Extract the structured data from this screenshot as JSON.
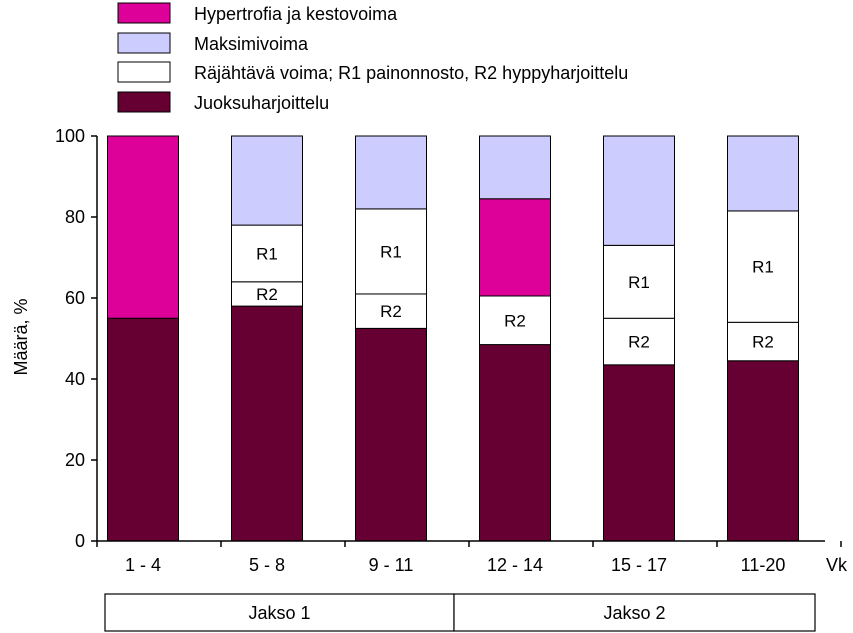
{
  "chart_data": {
    "type": "bar",
    "stacked": true,
    "ylabel": "Määrä, %",
    "ylim": [
      0,
      100
    ],
    "yticks": [
      0,
      20,
      40,
      60,
      80,
      100
    ],
    "x_unit_label": "Vk",
    "categories": [
      "1 - 4",
      "5 - 8",
      "9 - 11",
      "12  - 14",
      "15  - 17",
      "11-20"
    ],
    "groups": [
      {
        "label": "Jakso 1",
        "categories": 3
      },
      {
        "label": "Jakso 2",
        "categories": 3
      }
    ],
    "legend_position": "top",
    "legend_note": "Räjähtävä voima;     R1 painonnosto,     R2 hyppyharjoittelu",
    "series": [
      {
        "name": "Juoksuharjoittelu",
        "color": "#660033",
        "values": [
          55,
          58,
          52.5,
          48.5,
          43.5,
          44.5
        ]
      },
      {
        "name": "R2",
        "color": "#ffffff",
        "segment_label": "R2",
        "values": [
          0,
          6,
          8.5,
          12,
          11.5,
          9.5
        ]
      },
      {
        "name": "R1",
        "color": "#ffffff",
        "segment_label": "R1",
        "values": [
          0,
          14,
          21,
          0,
          18,
          27.5
        ]
      },
      {
        "name": "Hypertrofia ja kestovoima",
        "color": "#dd0099",
        "values": [
          45,
          0,
          0,
          24,
          0,
          0
        ]
      },
      {
        "name": "Maksimivoima",
        "color": "#ccccff",
        "values": [
          0,
          22,
          18,
          15.5,
          27,
          18.5
        ]
      }
    ],
    "legend": [
      {
        "label": "Hypertrofia ja kestovoima",
        "color": "#dd0099"
      },
      {
        "label": "Maksimivoima",
        "color": "#ccccff"
      },
      {
        "label": "Räjähtävä voima;     R1 painonnosto,     R2 hyppyharjoittelu",
        "color": "#ffffff"
      },
      {
        "label": "Juoksuharjoittelu",
        "color": "#660033"
      }
    ]
  }
}
